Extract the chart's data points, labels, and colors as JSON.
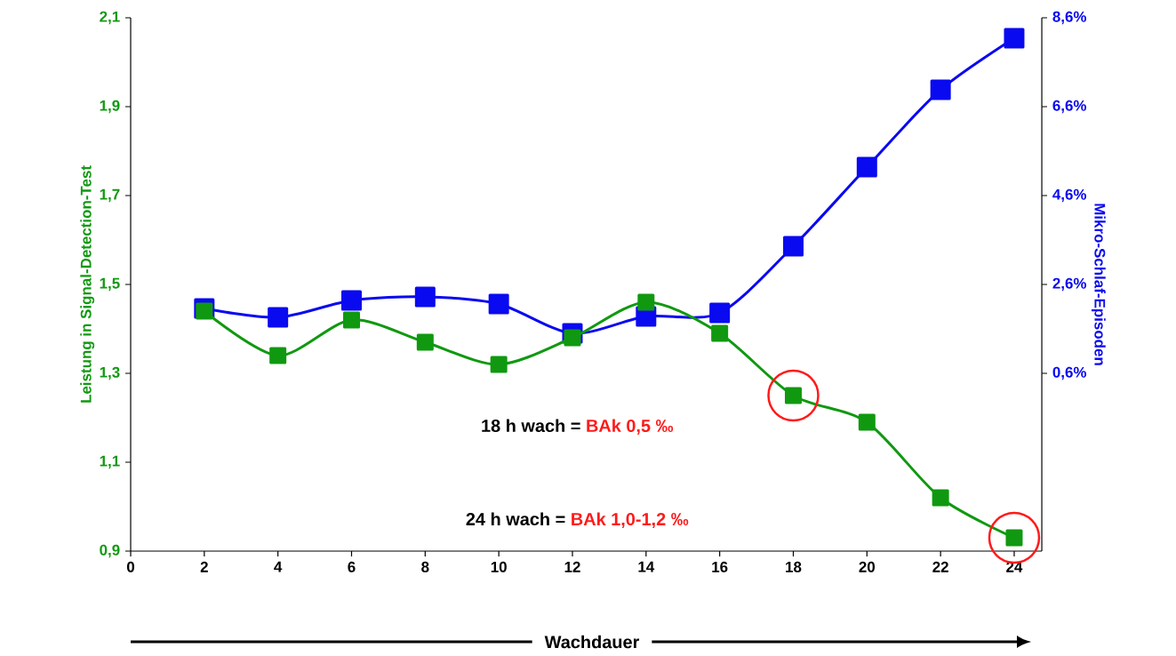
{
  "chart_data": {
    "type": "line",
    "xlabel": "Wachdauer",
    "ylabel": "Leistung in Signal-Detection-Test",
    "y2label": "Mikro-Schlaf-Episoden",
    "marker": "square",
    "x": [
      2,
      4,
      6,
      8,
      10,
      12,
      14,
      16,
      18,
      20,
      22,
      24
    ],
    "series": [
      {
        "color": "#109910",
        "values": [
          1.44,
          1.34,
          1.42,
          1.37,
          1.32,
          1.38,
          1.46,
          1.39,
          1.25,
          1.19,
          1.02,
          0.93
        ]
      },
      {
        "color": "#0a0af0",
        "axis": "y2",
        "values": [
          2.06,
          1.86,
          2.24,
          2.32,
          2.16,
          1.5,
          1.88,
          1.96,
          3.46,
          5.24,
          6.98,
          8.14
        ]
      }
    ],
    "xlim": [
      0,
      24.75
    ],
    "xticks": [
      0,
      2,
      4,
      6,
      8,
      10,
      12,
      14,
      16,
      18,
      20,
      22,
      24
    ],
    "ylim": [
      0.9,
      2.1
    ],
    "yticks": [
      {
        "value": 0.9,
        "label": "0,9"
      },
      {
        "value": 1.1,
        "label": "1,1"
      },
      {
        "value": 1.3,
        "label": "1,3"
      },
      {
        "value": 1.5,
        "label": "1,5"
      },
      {
        "value": 1.7,
        "label": "1,7"
      },
      {
        "value": 1.9,
        "label": "1,9"
      },
      {
        "value": 2.1,
        "label": "2,1"
      }
    ],
    "y2lim": [
      -3.4,
      8.6
    ],
    "y2ticks": [
      {
        "value": 0.6,
        "label": "0,6%"
      },
      {
        "value": 2.6,
        "label": "2,6%"
      },
      {
        "value": 4.6,
        "label": "4,6%"
      },
      {
        "value": 6.6,
        "label": "6,6%"
      },
      {
        "value": 8.6,
        "label": "8,6%"
      }
    ],
    "annotations": [
      "18 h wach =",
      "BAk 0,5 ‰",
      "24 h wach =",
      "BAk 1,0-1,2 ‰"
    ]
  }
}
